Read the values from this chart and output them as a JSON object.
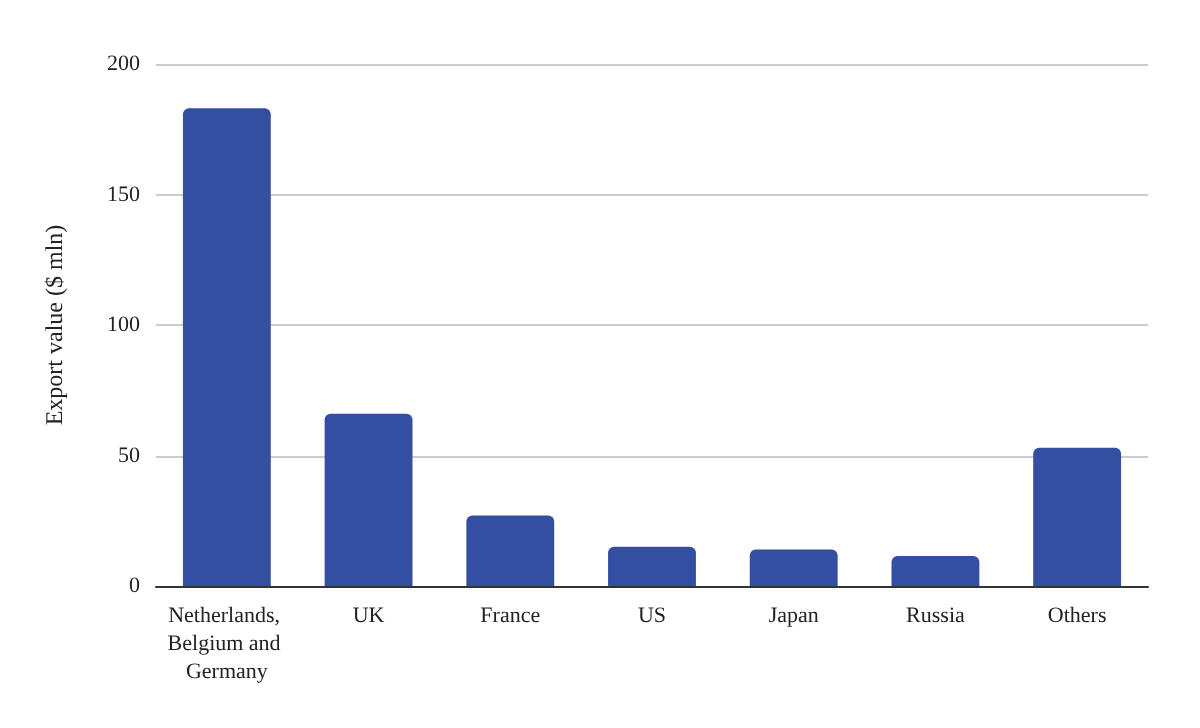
{
  "chart_data": {
    "type": "bar",
    "ylabel": "Export value ($ mln)",
    "categories": [
      "Netherlands, Belgium and Germany",
      "UK",
      "France",
      "US",
      "Japan",
      "Russia",
      "Others"
    ],
    "values": [
      183,
      66,
      27,
      15,
      14,
      11.5,
      53
    ],
    "color": "#344fa1",
    "ylim": [
      0,
      200
    ],
    "yticks": [
      0,
      50,
      100,
      150,
      200
    ],
    "grid": "y"
  }
}
